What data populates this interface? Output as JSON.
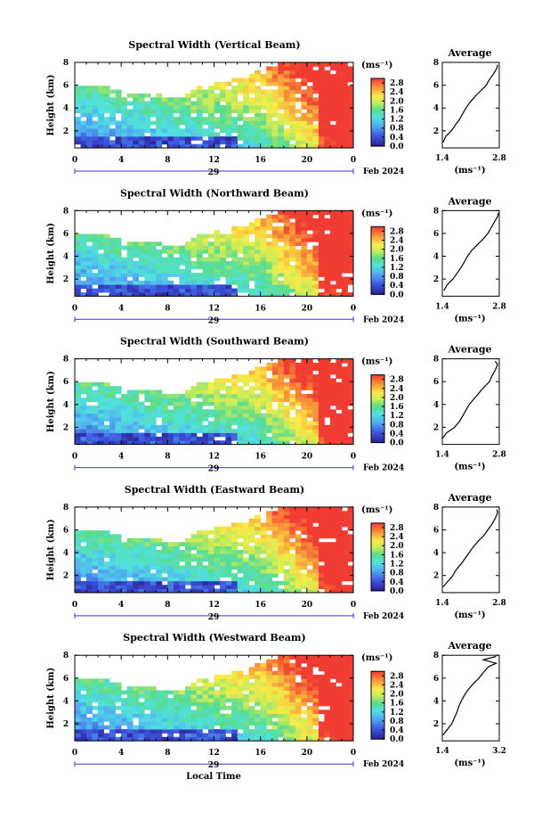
{
  "chart_data": [
    {
      "type": "heatmap",
      "title": "Spectral Width (Vertical Beam)",
      "ylabel": "Height (km)",
      "x_ticks": [
        "0",
        "4",
        "8",
        "12",
        "16",
        "20",
        "0"
      ],
      "y_ticks": [
        "2",
        "4",
        "6",
        "8"
      ],
      "xlim": [
        0,
        24
      ],
      "ylim": [
        0.5,
        8
      ],
      "date_day": "29",
      "date_month": "Feb 2024",
      "colorbar": {
        "unit": "(ms⁻¹)",
        "ticks": [
          "2.8",
          "2.4",
          "2.0",
          "1.6",
          "1.2",
          "0.8",
          "0.4",
          "0.0"
        ],
        "range": [
          0,
          3.0
        ]
      },
      "average": {
        "title": "Average",
        "xlabel": "(ms⁻¹)",
        "x_ticks": [
          "1.4",
          "2.8"
        ],
        "y_ticks": [
          "2",
          "4",
          "6",
          "8"
        ],
        "xlim": [
          1.4,
          2.8
        ],
        "ylim": [
          0.5,
          8
        ],
        "height": [
          1.0,
          1.5,
          2.0,
          2.5,
          3.0,
          3.5,
          4.0,
          4.5,
          5.0,
          5.5,
          6.0,
          6.5,
          7.0,
          7.5,
          7.8
        ],
        "value": [
          1.42,
          1.48,
          1.62,
          1.72,
          1.82,
          1.9,
          1.98,
          2.08,
          2.2,
          2.34,
          2.48,
          2.56,
          2.66,
          2.74,
          2.76
        ]
      }
    },
    {
      "type": "heatmap",
      "title": "Spectral Width (Northward Beam)",
      "ylabel": "Height (km)",
      "x_ticks": [
        "0",
        "4",
        "8",
        "12",
        "16",
        "20",
        "0"
      ],
      "y_ticks": [
        "2",
        "4",
        "6",
        "8"
      ],
      "xlim": [
        0,
        24
      ],
      "ylim": [
        0.5,
        8
      ],
      "date_day": "29",
      "date_month": "Feb 2024",
      "colorbar": {
        "unit": "(ms⁻¹)",
        "ticks": [
          "2.8",
          "2.4",
          "2.0",
          "1.6",
          "1.2",
          "0.8",
          "0.4",
          "0.0"
        ],
        "range": [
          0,
          3.0
        ]
      },
      "average": {
        "title": "Average",
        "xlabel": "(ms⁻¹)",
        "x_ticks": [
          "1.4",
          "2.8"
        ],
        "y_ticks": [
          "2",
          "4",
          "6",
          "8"
        ],
        "xlim": [
          1.4,
          2.8
        ],
        "ylim": [
          0.5,
          8
        ],
        "height": [
          1.0,
          1.5,
          2.0,
          2.5,
          3.0,
          3.5,
          4.0,
          4.5,
          5.0,
          5.5,
          6.0,
          6.5,
          7.0,
          7.5,
          7.8
        ],
        "value": [
          1.44,
          1.52,
          1.66,
          1.76,
          1.86,
          1.94,
          2.02,
          2.12,
          2.26,
          2.4,
          2.52,
          2.6,
          2.68,
          2.76,
          2.78
        ]
      }
    },
    {
      "type": "heatmap",
      "title": "Spectral Width (Southward Beam)",
      "ylabel": "Height (km)",
      "x_ticks": [
        "0",
        "4",
        "8",
        "12",
        "16",
        "20",
        "0"
      ],
      "y_ticks": [
        "2",
        "4",
        "6",
        "8"
      ],
      "xlim": [
        0,
        24
      ],
      "ylim": [
        0.5,
        8
      ],
      "date_day": "29",
      "date_month": "Feb 2024",
      "colorbar": {
        "unit": "(ms⁻¹)",
        "ticks": [
          "2.8",
          "2.4",
          "2.0",
          "1.6",
          "1.2",
          "0.8",
          "0.4",
          "0.0"
        ],
        "range": [
          0,
          3.0
        ]
      },
      "average": {
        "title": "Average",
        "xlabel": "(ms⁻¹)",
        "x_ticks": [
          "1.4",
          "2.8"
        ],
        "y_ticks": [
          "2",
          "4",
          "6",
          "8"
        ],
        "xlim": [
          1.4,
          2.8
        ],
        "ylim": [
          0.5,
          8
        ],
        "height": [
          1.0,
          1.5,
          2.0,
          2.5,
          3.0,
          3.5,
          4.0,
          4.5,
          5.0,
          5.5,
          6.0,
          6.5,
          7.0,
          7.5,
          7.8
        ],
        "value": [
          1.4,
          1.5,
          1.7,
          1.82,
          1.9,
          1.98,
          2.06,
          2.18,
          2.3,
          2.42,
          2.56,
          2.62,
          2.7,
          2.76,
          2.7
        ]
      }
    },
    {
      "type": "heatmap",
      "title": "Spectral Width (Eastward Beam)",
      "ylabel": "Height (km)",
      "x_ticks": [
        "0",
        "4",
        "8",
        "12",
        "16",
        "20",
        "0"
      ],
      "y_ticks": [
        "2",
        "4",
        "6",
        "8"
      ],
      "xlim": [
        0,
        24
      ],
      "ylim": [
        0.5,
        8
      ],
      "date_day": "29",
      "date_month": "Feb 2024",
      "colorbar": {
        "unit": "(ms⁻¹)",
        "ticks": [
          "2.8",
          "2.4",
          "2.0",
          "1.6",
          "1.2",
          "0.8",
          "0.4",
          "0.0"
        ],
        "range": [
          0,
          3.0
        ]
      },
      "average": {
        "title": "Average",
        "xlabel": "(ms⁻¹)",
        "x_ticks": [
          "1.4",
          "2.8"
        ],
        "y_ticks": [
          "2",
          "4",
          "6",
          "8"
        ],
        "xlim": [
          1.4,
          2.8
        ],
        "ylim": [
          0.5,
          8
        ],
        "height": [
          1.0,
          1.5,
          2.0,
          2.5,
          3.0,
          3.5,
          4.0,
          4.5,
          5.0,
          5.5,
          6.0,
          6.5,
          7.0,
          7.5,
          7.8
        ],
        "value": [
          1.42,
          1.54,
          1.66,
          1.74,
          1.86,
          1.96,
          2.06,
          2.16,
          2.28,
          2.42,
          2.52,
          2.62,
          2.7,
          2.76,
          2.74
        ]
      }
    },
    {
      "type": "heatmap",
      "title": "Spectral Width (Westward Beam)",
      "ylabel": "Height (km)",
      "xlabel": "Local Time",
      "x_ticks": [
        "0",
        "4",
        "8",
        "12",
        "16",
        "20",
        "0"
      ],
      "y_ticks": [
        "2",
        "4",
        "6",
        "8"
      ],
      "xlim": [
        0,
        24
      ],
      "ylim": [
        0.5,
        8
      ],
      "date_day": "29",
      "date_month": "Feb 2024",
      "colorbar": {
        "unit": "(ms⁻¹)",
        "ticks": [
          "2.8",
          "2.4",
          "2.0",
          "1.6",
          "1.2",
          "0.8",
          "0.4",
          "0.0"
        ],
        "range": [
          0,
          3.0
        ]
      },
      "average": {
        "title": "Average",
        "xlabel": "(ms⁻¹)",
        "x_ticks": [
          "1.4",
          "3.2"
        ],
        "y_ticks": [
          "2",
          "4",
          "6",
          "8"
        ],
        "xlim": [
          1.4,
          3.2
        ],
        "ylim": [
          0.5,
          8
        ],
        "height": [
          1.0,
          1.5,
          2.0,
          2.5,
          3.0,
          3.5,
          4.0,
          4.5,
          5.0,
          5.5,
          6.0,
          6.5,
          7.0,
          7.3,
          7.6,
          7.9
        ],
        "value": [
          1.42,
          1.56,
          1.7,
          1.78,
          1.86,
          1.92,
          2.0,
          2.1,
          2.22,
          2.38,
          2.56,
          2.7,
          2.86,
          3.1,
          2.7,
          3.1
        ]
      }
    }
  ]
}
